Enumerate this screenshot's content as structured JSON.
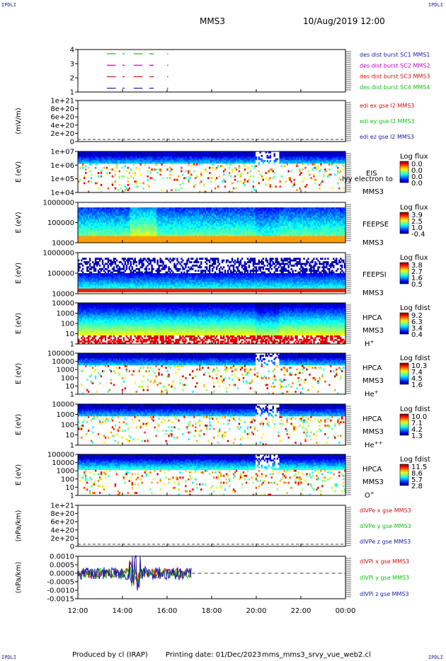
{
  "header": {
    "corner_labels": [
      "IPDLI",
      "IPDLI",
      "IPDLI",
      "IPDLI"
    ],
    "mission": "MMS3",
    "datetime": "10/Aug/2019 12:00"
  },
  "footer": {
    "produced_by": "Produced by cl (IRAP)",
    "printing_date": "Printing date: 01/Dec/2023",
    "filename": "mms_mms3_srvy_vue_web2.cl"
  },
  "colors": {
    "mms1": "#1a1aa8",
    "mms2": "#c000c0",
    "mms3": "#d01010",
    "mms4": "#10c010",
    "x": "#d01010",
    "y": "#10c010",
    "z": "#1a1aa8"
  },
  "time_axis": {
    "ticks": [
      "12:00",
      "14:00",
      "16:00",
      "18:00",
      "20:00",
      "22:00",
      "00:00"
    ],
    "hours": [
      12,
      14,
      16,
      18,
      20,
      22,
      24
    ]
  },
  "chart_data": [
    {
      "type": "line",
      "id": "burst",
      "yticks": [
        "4",
        "3",
        "2",
        "1"
      ],
      "legend": [
        {
          "text": "des dist burst SC1 MMS1",
          "color": "#1a1aa8"
        },
        {
          "text": "des dist burst SC2 MMS2",
          "color": "#c000c0"
        },
        {
          "text": "des dist burst SC3 MMS3",
          "color": "#d01010"
        },
        {
          "text": "des dist burst SC4 MMS4",
          "color": "#10c010"
        }
      ],
      "intervals_hours": [
        [
          13.3,
          13.7
        ],
        [
          14.0,
          14.1
        ],
        [
          14.5,
          14.9
        ],
        [
          15.2,
          15.4
        ],
        [
          16.0,
          16.05
        ]
      ]
    },
    {
      "type": "line",
      "id": "efield",
      "ylabel": "(mV/m)",
      "yticks": [
        "1e+21",
        "8e+20",
        "6e+20",
        "4e+20",
        "2e+20",
        "0"
      ],
      "legend": [
        {
          "text": "edi ex gse l2 MMS3",
          "color": "#d01010"
        },
        {
          "text": "edi ey gse l2 MMS3",
          "color": "#10c010"
        },
        {
          "text": "edi ez gse l2 MMS3",
          "color": "#1a1aa8"
        }
      ]
    },
    {
      "type": "heatmap",
      "id": "eis",
      "ylabel": "E (eV)",
      "yticks": [
        "1e+07",
        "1e+06",
        "1e+05",
        "1e+04"
      ],
      "side_labels": [
        "EIS",
        "MMS3"
      ],
      "overflow_text": "lyy electron to",
      "colorbar_title": "Log flux",
      "colorbar_ticks": [
        "0.0",
        "0.0",
        "0.0",
        "0.0"
      ]
    },
    {
      "type": "heatmap",
      "id": "feepse",
      "ylabel": "E (eV)",
      "yticks": [
        "1000000",
        "100000",
        "10000"
      ],
      "side_labels": [
        "FEEPSE",
        "MMS3"
      ],
      "colorbar_title": "Log flux",
      "colorbar_ticks": [
        "3.9",
        "2.5",
        "1.0",
        "-0.4"
      ]
    },
    {
      "type": "heatmap",
      "id": "feepsi",
      "ylabel": "E (eV)",
      "yticks": [
        "1000000",
        "100000",
        "10000"
      ],
      "side_labels": [
        "FEEPSI",
        "MMS3"
      ],
      "colorbar_title": "Log flux",
      "colorbar_ticks": [
        "3.8",
        "2.7",
        "1.6",
        "0.5"
      ]
    },
    {
      "type": "heatmap",
      "id": "hpca_h",
      "ylabel": "E (eV)",
      "yticks": [
        "10000",
        "1000",
        "100",
        "10",
        "1"
      ],
      "side_labels": [
        "HPCA",
        "MMS3",
        "H+"
      ],
      "colorbar_title": "Log fdist",
      "colorbar_ticks": [
        "9.2",
        "6.3",
        "3.4",
        "0.4"
      ]
    },
    {
      "type": "heatmap",
      "id": "hpca_he",
      "ylabel": "E (eV)",
      "yticks": [
        "100000",
        "10000",
        "1000",
        "100",
        "10",
        "1"
      ],
      "side_labels": [
        "HPCA",
        "MMS3",
        "He+"
      ],
      "colorbar_title": "Log fdist",
      "colorbar_ticks": [
        "10.3",
        "7.4",
        "4.5",
        "1.6"
      ]
    },
    {
      "type": "heatmap",
      "id": "hpca_hepp",
      "ylabel": "E (eV)",
      "yticks": [
        "10000",
        "1000",
        "100",
        "10",
        "1"
      ],
      "side_labels": [
        "HPCA",
        "MMS3",
        "He++"
      ],
      "colorbar_title": "Log fdist",
      "colorbar_ticks": [
        "10.0",
        "7.1",
        "4.2",
        "1.3"
      ]
    },
    {
      "type": "heatmap",
      "id": "hpca_o",
      "ylabel": "E (eV)",
      "yticks": [
        "100000",
        "10000",
        "1000",
        "100",
        "10",
        "1"
      ],
      "side_labels": [
        "HPCA",
        "MMS3",
        "O+"
      ],
      "colorbar_title": "Log fdist",
      "colorbar_ticks": [
        "11.5",
        "8.6",
        "5.7",
        "2.8"
      ]
    },
    {
      "type": "line",
      "id": "divpe",
      "ylabel": "(nPa/km)",
      "yticks": [
        "1e+21",
        "8e+20",
        "6e+20",
        "4e+20",
        "2e+20",
        "0"
      ],
      "legend": [
        {
          "text": "dlVPe x gse MMS3",
          "color": "#d01010"
        },
        {
          "text": "dlVPe y gse MMS3",
          "color": "#10c010"
        },
        {
          "text": "dlVPe z gse MMS3",
          "color": "#1a1aa8"
        }
      ]
    },
    {
      "type": "line",
      "id": "divpi",
      "ylabel": "(nPa/km)",
      "yticks": [
        "0.0010",
        "0.0005",
        "0.0000",
        "-0.0005",
        "-0.0010",
        "-0.0015"
      ],
      "ylim": [
        -0.0015,
        0.001
      ],
      "data_until_hours": 17.1,
      "legend": [
        {
          "text": "dlVPi x gse MMS3",
          "color": "#d01010"
        },
        {
          "text": "dlVPi y gse MMS3",
          "color": "#10c010"
        },
        {
          "text": "dlVPi z gse MMS3",
          "color": "#1a1aa8"
        }
      ]
    }
  ]
}
